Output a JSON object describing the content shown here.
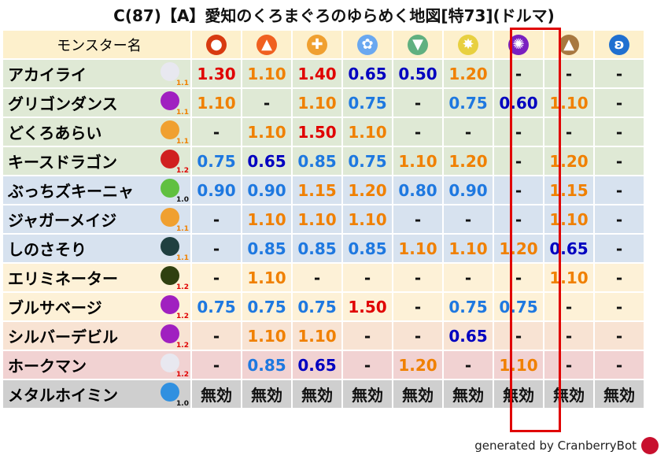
{
  "title": "C(87)【A】愛知のくろまぐろのゆらめく地図[特73](ドルマ)",
  "header": {
    "name_label": "モンスター名",
    "elements": [
      {
        "icon": "fire-ball-icon",
        "color": "#d83a10",
        "glyph": "●"
      },
      {
        "icon": "flame-icon",
        "color": "#f06020",
        "glyph": "▲"
      },
      {
        "icon": "explosion-icon",
        "color": "#f0a030",
        "glyph": "✚"
      },
      {
        "icon": "ice-icon",
        "color": "#6aa8f0",
        "glyph": "✿"
      },
      {
        "icon": "wind-icon",
        "color": "#60b080",
        "glyph": "▼"
      },
      {
        "icon": "light-icon",
        "color": "#e8d040",
        "glyph": "✸"
      },
      {
        "icon": "dark-icon",
        "color": "#7a20c0",
        "glyph": "✺"
      },
      {
        "icon": "earth-icon",
        "color": "#a87840",
        "glyph": "▲"
      },
      {
        "icon": "water-icon",
        "color": "#2070d0",
        "glyph": "ʚ"
      }
    ]
  },
  "highlight_column": 7,
  "rows": [
    {
      "name": "アカイライ",
      "icon": "wing-icon",
      "icon_color": "#e8e8f0",
      "rank": "1.1",
      "bg": "g",
      "values": [
        "1.30",
        "1.10",
        "1.40",
        "0.65",
        "0.50",
        "1.20",
        "-",
        "-",
        "-"
      ]
    },
    {
      "name": "グリゴンダンス",
      "icon": "trident-icon",
      "icon_color": "#a020c0",
      "rank": "1.1",
      "bg": "g",
      "values": [
        "1.10",
        "-",
        "1.10",
        "0.75",
        "-",
        "0.75",
        "0.60",
        "1.10",
        "-"
      ]
    },
    {
      "name": "どくろあらい",
      "icon": "paw-icon",
      "icon_color": "#f0a030",
      "rank": "1.1",
      "bg": "g",
      "values": [
        "-",
        "1.10",
        "1.50",
        "1.10",
        "-",
        "-",
        "-",
        "-",
        "-"
      ]
    },
    {
      "name": "キースドラゴン",
      "icon": "dragon-icon",
      "icon_color": "#d02020",
      "rank": "1.2",
      "bg": "g",
      "values": [
        "0.75",
        "0.65",
        "0.85",
        "0.75",
        "1.10",
        "1.20",
        "-",
        "1.20",
        "-"
      ]
    },
    {
      "name": "ぶっちズキーニャ",
      "icon": "leaf-icon",
      "icon_color": "#60c040",
      "rank": "1.0",
      "bg": "b",
      "values": [
        "0.90",
        "0.90",
        "1.15",
        "1.20",
        "0.80",
        "0.90",
        "-",
        "1.15",
        "-"
      ]
    },
    {
      "name": "ジャガーメイジ",
      "icon": "paw-icon",
      "icon_color": "#f0a030",
      "rank": "1.1",
      "bg": "b",
      "values": [
        "-",
        "1.10",
        "1.10",
        "1.10",
        "-",
        "-",
        "-",
        "1.10",
        "-"
      ]
    },
    {
      "name": "しのさそり",
      "icon": "bug-icon",
      "icon_color": "#204040",
      "rank": "1.1",
      "bg": "b",
      "values": [
        "-",
        "0.85",
        "0.85",
        "0.85",
        "1.10",
        "1.10",
        "1.20",
        "0.65",
        "-"
      ]
    },
    {
      "name": "エリミネーター",
      "icon": "ghost-icon",
      "icon_color": "#304010",
      "rank": "1.2",
      "bg": "y",
      "values": [
        "-",
        "1.10",
        "-",
        "-",
        "-",
        "-",
        "-",
        "1.10",
        "-"
      ]
    },
    {
      "name": "ブルサベージ",
      "icon": "trident-icon",
      "icon_color": "#a020c0",
      "rank": "1.2",
      "bg": "y",
      "values": [
        "0.75",
        "0.75",
        "0.75",
        "1.50",
        "-",
        "0.75",
        "0.75",
        "-",
        "-"
      ]
    },
    {
      "name": "シルバーデビル",
      "icon": "trident-icon",
      "icon_color": "#a020c0",
      "rank": "1.2",
      "bg": "p",
      "values": [
        "-",
        "1.10",
        "1.10",
        "-",
        "-",
        "0.65",
        "-",
        "-",
        "-"
      ]
    },
    {
      "name": "ホークマン",
      "icon": "wing-icon",
      "icon_color": "#e8e8f0",
      "rank": "1.2",
      "bg": "k",
      "values": [
        "-",
        "0.85",
        "0.65",
        "-",
        "1.20",
        "-",
        "1.10",
        "-",
        "-"
      ]
    },
    {
      "name": "メタルホイミン",
      "icon": "slime-icon",
      "icon_color": "#3090e0",
      "rank": "1.0",
      "bg": "s",
      "values": [
        "無効",
        "無効",
        "無効",
        "無効",
        "無効",
        "無効",
        "無効",
        "無効",
        "無効"
      ]
    }
  ],
  "footer": "generated by CranberryBot"
}
